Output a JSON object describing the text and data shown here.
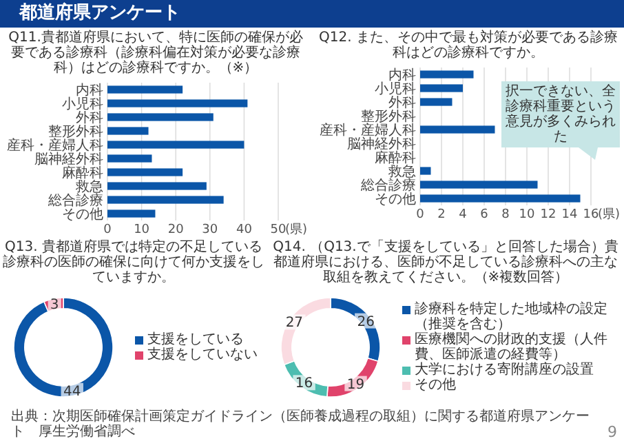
{
  "chart_data": [
    {
      "type": "other",
      "title": "都道府県アンケート",
      "annotations": [
        "出典：次期医師確保計画策定ガイドライン（医師養成過程の取組）に関する都道府県アンケート　厚生労働省調べ",
        "9"
      ]
    },
    {
      "type": "bar",
      "orientation": "horizontal",
      "title": "Q11.貴都道府県において、特に医師の確保が必要である診療科（診療科偏在対策が必要な診療科）はどの診療科ですか。（※）",
      "categories": [
        "内科",
        "小児科",
        "外科",
        "整形外科",
        "産科・産婦人科",
        "脳神経外科",
        "麻酔科",
        "救急",
        "総合診療",
        "その他"
      ],
      "values": [
        22,
        41,
        31,
        12,
        40,
        13,
        22,
        29,
        34,
        14
      ],
      "color": "#0b56a8",
      "xlim": [
        0,
        50
      ],
      "xticks": [
        0,
        10,
        20,
        30,
        40,
        50
      ],
      "xlabel": "(県)",
      "grid": "x"
    },
    {
      "type": "bar",
      "orientation": "horizontal",
      "title": "Q12. また、その中で最も対策が必要である診療科はどの診療科ですか。",
      "categories": [
        "内科",
        "小児科",
        "外科",
        "整形外科",
        "産科・産婦人科",
        "脳神経外科",
        "麻酔科",
        "救急",
        "総合診療",
        "その他"
      ],
      "values": [
        5,
        4,
        3,
        0,
        7,
        0,
        0,
        1,
        11,
        15
      ],
      "color": "#0b56a8",
      "xlim": [
        0,
        16
      ],
      "xticks": [
        0,
        2,
        4,
        6,
        8,
        10,
        12,
        14,
        16
      ],
      "xlabel": "(県)",
      "grid": "x",
      "annotations": [
        "択一できない、全診療科重要という意見が多くみられた"
      ]
    },
    {
      "type": "donut",
      "title": "Q13. 貴都道府県では特定の不足している診療科の医師の確保に向けて何か支援をしていますか。",
      "categories": [
        "支援をしている",
        "支援をしていない"
      ],
      "values": [
        44,
        3
      ],
      "colors": [
        "#0b56a8",
        "#e0436b"
      ],
      "data_labels": true,
      "legend": "right"
    },
    {
      "type": "donut",
      "title": "Q14. （Q13.で「支援をしている」と回答した場合）貴都道府県における、医師が不足している診療科への主な取組を教えてください。（※複数回答）",
      "categories": [
        "診療科を特定した地域枠の設定（推奨を含む）",
        "医療機関への財政的支援（人件費、医師派遣の経費等）",
        "大学における寄附講座の設置",
        "その他"
      ],
      "values": [
        26,
        19,
        16,
        27
      ],
      "colors": [
        "#0b56a8",
        "#e0436b",
        "#4dbdb0",
        "#fadbe1"
      ],
      "data_labels": true,
      "legend": "right"
    }
  ]
}
